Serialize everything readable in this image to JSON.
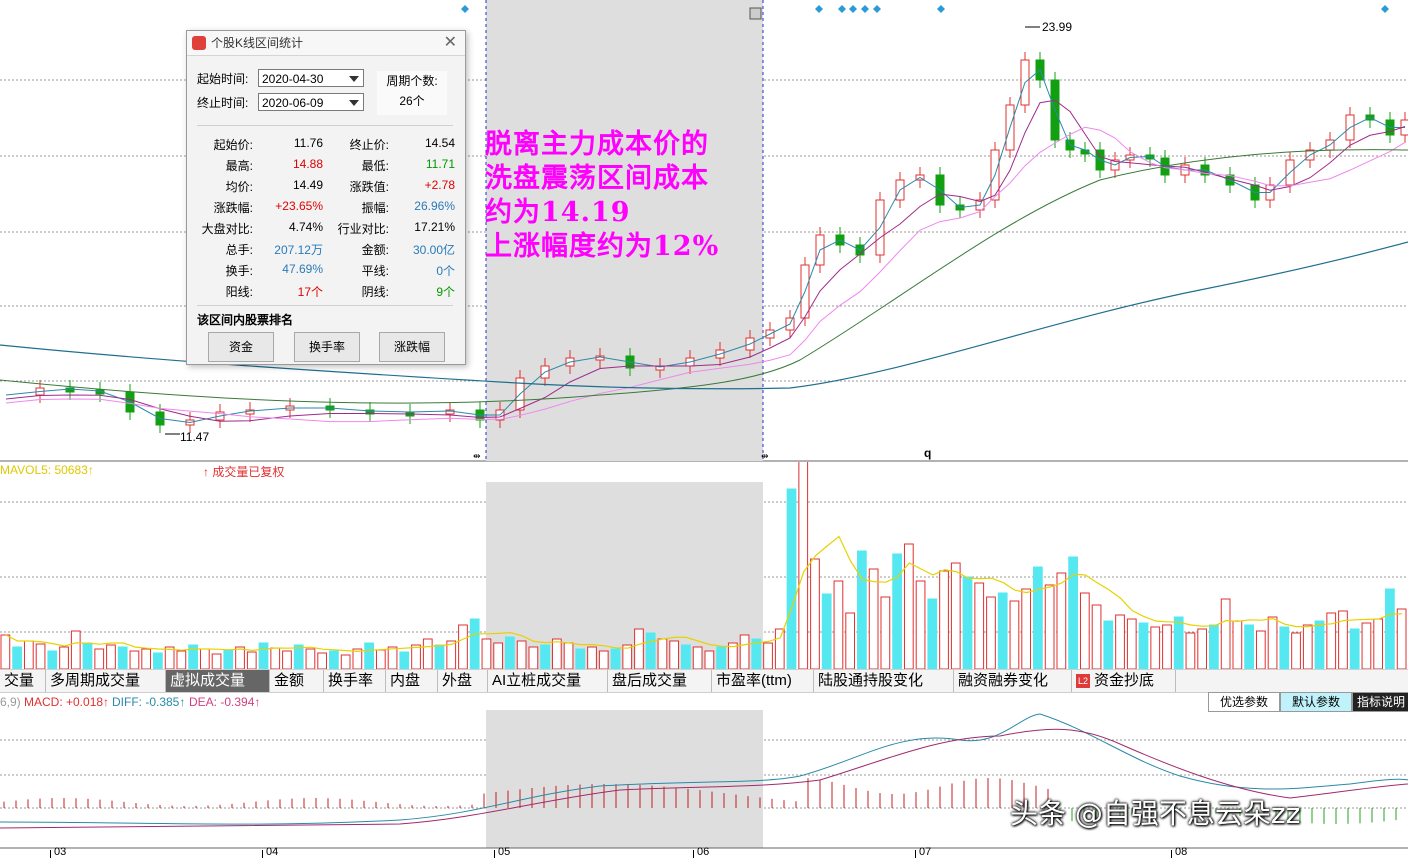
{
  "dialog": {
    "title": "个股K线区间统计",
    "start_label": "起始时间:",
    "start_value": "2020-04-30",
    "end_label": "终止时间:",
    "end_value": "2020-06-09",
    "period_label": "周期个数:",
    "period_value": "26个",
    "stats": [
      {
        "l1": "起始价:",
        "v1": "11.76",
        "c1": "black",
        "l2": "终止价:",
        "v2": "14.54",
        "c2": "black"
      },
      {
        "l1": "最高:",
        "v1": "14.88",
        "c1": "red",
        "l2": "最低:",
        "v2": "11.71",
        "c2": "green"
      },
      {
        "l1": "均价:",
        "v1": "14.49",
        "c1": "black",
        "l2": "涨跌值:",
        "v2": "+2.78",
        "c2": "red"
      },
      {
        "l1": "涨跌幅:",
        "v1": "+23.65%",
        "c1": "red",
        "l2": "振幅:",
        "v2": "26.96%",
        "c2": "blue"
      },
      {
        "l1": "大盘对比:",
        "v1": "4.74%",
        "c1": "black",
        "l2": "行业对比:",
        "v2": "17.21%",
        "c2": "black"
      },
      {
        "l1": "总手:",
        "v1": "207.12万",
        "c1": "blue",
        "l2": "金额:",
        "v2": "30.00亿",
        "c2": "blue"
      },
      {
        "l1": "换手:",
        "v1": "47.69%",
        "c1": "blue",
        "l2": "平线:",
        "v2": "0个",
        "c2": "blue"
      },
      {
        "l1": "阳线:",
        "v1": "17个",
        "c1": "red",
        "l2": "阴线:",
        "v2": "9个",
        "c2": "green"
      }
    ],
    "rank_title": "该区间内股票排名",
    "btn_fund": "资金",
    "btn_turnover": "换手率",
    "btn_change": "涨跌幅"
  },
  "annotation": {
    "line1": "脱离主力成本价的",
    "line2": "洗盘震荡区间成本",
    "line3": "约为14.19",
    "line4": "上涨幅度约为12%"
  },
  "price_chart": {
    "high_label": "23.99",
    "low_label": "11.47",
    "marker_label": "q"
  },
  "volume_panel": {
    "mavol_label": "MAVOL5: 50683↑",
    "adjusted_label": "↑ 成交量已复权"
  },
  "tabs": [
    {
      "label": "交量"
    },
    {
      "label": "多周期成交量"
    },
    {
      "label": "虚拟成交量"
    },
    {
      "label": "金额"
    },
    {
      "label": "换手率"
    },
    {
      "label": "内盘"
    },
    {
      "label": "外盘"
    },
    {
      "label": "AI立桩成交量"
    },
    {
      "label": "盘后成交量"
    },
    {
      "label": "市盈率(ttm)"
    },
    {
      "label": "陆股通持股变化"
    },
    {
      "label": "融资融券变化"
    },
    {
      "label": "资金抄底"
    }
  ],
  "tab_badge": "L2",
  "param_buttons": {
    "optional": "优选参数",
    "default": "默认参数",
    "help": "指标说明"
  },
  "macd": {
    "params": "6,9)",
    "macd": "MACD: +0.018↑",
    "diff": "DIFF: -0.385↑",
    "dea": "DEA: -0.394↑"
  },
  "x_axis": [
    "03",
    "04",
    "05",
    "06",
    "07",
    "08"
  ],
  "watermark": "头条 @自强不息云朵zz",
  "colors": {
    "up": "#e03030",
    "down": "#12a012",
    "vol_down": "#55e8f0",
    "annot": "#ff00ff"
  }
}
